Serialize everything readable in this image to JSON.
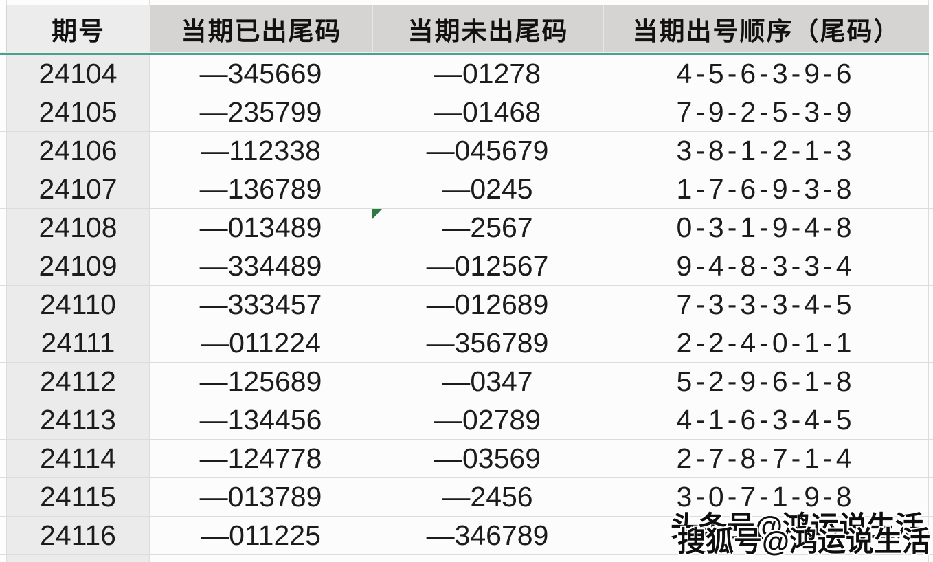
{
  "table": {
    "columns": [
      "期号",
      "当期已出尾码",
      "当期未出尾码",
      "当期出号顺序（尾码）"
    ],
    "rows": [
      {
        "period": "24104",
        "appeared": "—345669",
        "not_appeared": "—01278",
        "order": "4-5-6-3-9-6"
      },
      {
        "period": "24105",
        "appeared": "—235799",
        "not_appeared": "—01468",
        "order": "7-9-2-5-3-9"
      },
      {
        "period": "24106",
        "appeared": "—112338",
        "not_appeared": "—045679",
        "order": "3-8-1-2-1-3"
      },
      {
        "period": "24107",
        "appeared": "—136789",
        "not_appeared": "—0245",
        "order": "1-7-6-9-3-8"
      },
      {
        "period": "24108",
        "appeared": "—013489",
        "not_appeared": "—2567",
        "order": "0-3-1-9-4-8",
        "error_marker": true
      },
      {
        "period": "24109",
        "appeared": "—334489",
        "not_appeared": "—012567",
        "order": "9-4-8-3-3-4"
      },
      {
        "period": "24110",
        "appeared": "—333457",
        "not_appeared": "—012689",
        "order": "7-3-3-3-4-5"
      },
      {
        "period": "24111",
        "appeared": "—011224",
        "not_appeared": "—356789",
        "order": "2-2-4-0-1-1"
      },
      {
        "period": "24112",
        "appeared": "—125689",
        "not_appeared": "—0347",
        "order": "5-2-9-6-1-8"
      },
      {
        "period": "24113",
        "appeared": "—134456",
        "not_appeared": "—02789",
        "order": "4-1-6-3-4-5"
      },
      {
        "period": "24114",
        "appeared": "—124778",
        "not_appeared": "—03569",
        "order": "2-7-8-7-1-4"
      },
      {
        "period": "24115",
        "appeared": "—013789",
        "not_appeared": "—2456",
        "order": "3-0-7-1-9-8"
      },
      {
        "period": "24116",
        "appeared": "—011225",
        "not_appeared": "—346789",
        "order": "1-2-",
        "order_partial": true
      }
    ]
  },
  "watermark": {
    "back": "头条号@鸿运说生活",
    "front": "搜狐号@鸿运说生活"
  },
  "colors": {
    "header_bg": "#d6d4d3",
    "header_first_bg": "#edecec",
    "first_column_bg": "#ebebeb",
    "cell_bg": "#fcfcfc",
    "grid_border": "#dcdcdc",
    "freeze_line": "#4f9f90",
    "error_triangle": "#2c7a3f",
    "text": "#1c1c1c"
  }
}
